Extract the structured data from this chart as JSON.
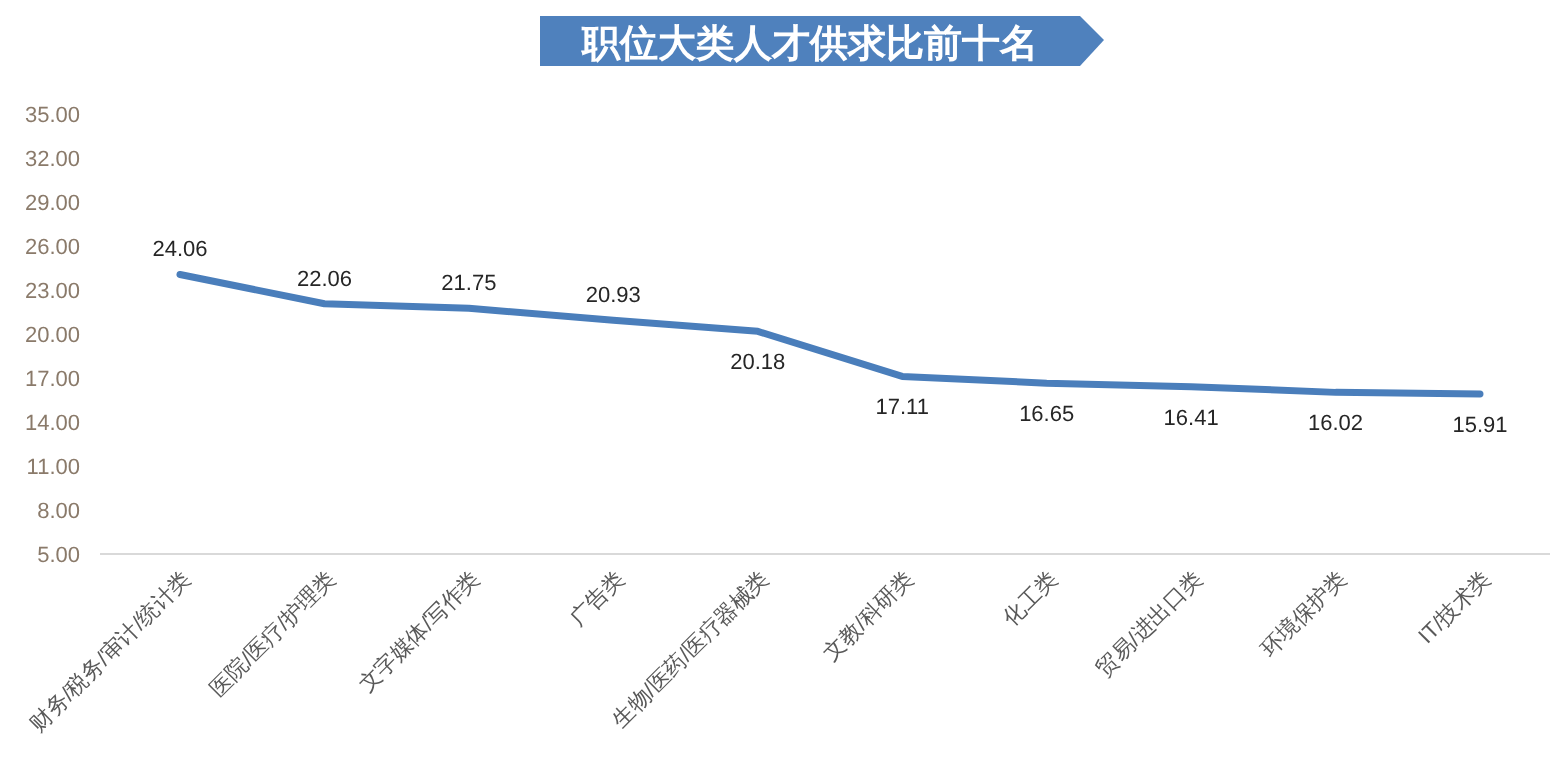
{
  "chart_data": {
    "type": "line",
    "title": "职位大类人才供求比前十名",
    "categories": [
      "财务/税务/审计/统计类",
      "医院/医疗/护理类",
      "文字媒体/写作类",
      "广告类",
      "生物/医药/医疗器械类",
      "文教/科研类",
      "化工类",
      "贸易/进出口类",
      "环境保护类",
      "IT/技术类"
    ],
    "series": [
      {
        "color": "#4a7ebb",
        "values": [
          24.06,
          22.06,
          21.75,
          20.93,
          20.18,
          17.11,
          16.65,
          16.41,
          16.02,
          15.91
        ]
      }
    ],
    "ylim": [
      5,
      35
    ],
    "yticks": [
      {
        "value": 5,
        "label": "5.00"
      },
      {
        "value": 8,
        "label": "8.00"
      },
      {
        "value": 11,
        "label": "11.00"
      },
      {
        "value": 14,
        "label": "14.00"
      },
      {
        "value": 17,
        "label": "17.00"
      },
      {
        "value": 20,
        "label": "20.00"
      },
      {
        "value": 23,
        "label": "23.00"
      },
      {
        "value": 26,
        "label": "26.00"
      },
      {
        "value": 29,
        "label": "29.00"
      },
      {
        "value": 32,
        "label": "32.00"
      },
      {
        "value": 35,
        "label": "35.00"
      }
    ],
    "data_labels": true,
    "grid": false,
    "marker": "none",
    "line_style": "solid"
  }
}
